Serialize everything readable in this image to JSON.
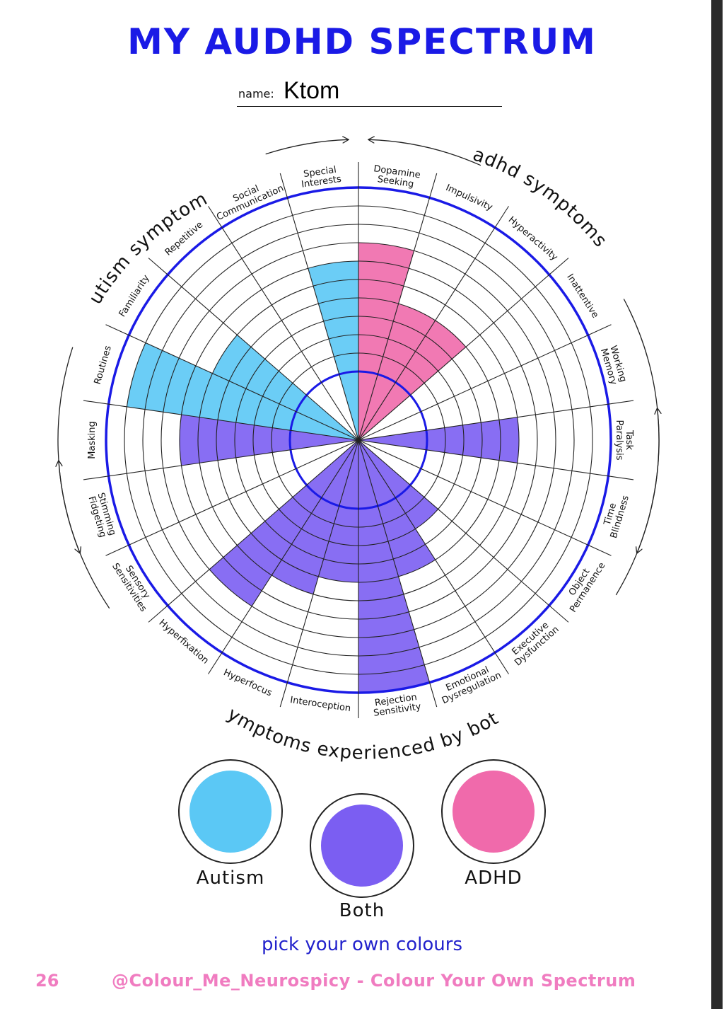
{
  "title": "MY AUDHD SPECTRUM",
  "name_label": "name:",
  "name_value": "Ktom",
  "group_labels": {
    "autism": "autism symptoms",
    "adhd": "adhd symptoms",
    "both": "symptoms experienced by both"
  },
  "colors": {
    "autism": "#5bc8f5",
    "adhd": "#f06aab",
    "both": "#7b5ef2",
    "ring": "#1a1ae6"
  },
  "chart_data": {
    "type": "polar-bar",
    "scale_max": 10,
    "sectors": [
      {
        "label": "Dopamine Seeking",
        "group": "adhd",
        "value": 7
      },
      {
        "label": "Impulsivity",
        "group": "adhd",
        "value": 4
      },
      {
        "label": "Hyperactivity",
        "group": "adhd",
        "value": 4
      },
      {
        "label": "Inattentive",
        "group": "adhd",
        "value": 0
      },
      {
        "label": "Working Memory",
        "group": "adhd",
        "value": 0
      },
      {
        "label": "Task Paralysis",
        "group": "both",
        "value": 5
      },
      {
        "label": "Time Blindness",
        "group": "both",
        "value": 0
      },
      {
        "label": "Object Permanence",
        "group": "both",
        "value": 0
      },
      {
        "label": "Executive Dysfunction",
        "group": "both",
        "value": 2
      },
      {
        "label": "Emotional Dysregulation",
        "group": "both",
        "value": 4
      },
      {
        "label": "Rejection Sensitivity",
        "group": "both",
        "value": 10
      },
      {
        "label": "Interoception",
        "group": "both",
        "value": 4
      },
      {
        "label": "Hyperfocus",
        "group": "both",
        "value": 5
      },
      {
        "label": "Hyperfixation",
        "group": "both",
        "value": 7
      },
      {
        "label": "Sensory Sensitivities",
        "group": "both",
        "value": 0
      },
      {
        "label": "Stimming Fidgeting",
        "group": "both",
        "value": 0
      },
      {
        "label": "Masking",
        "group": "both",
        "value": 6
      },
      {
        "label": "Routines",
        "group": "autism",
        "value": 9
      },
      {
        "label": "Familiarity",
        "group": "autism",
        "value": 5
      },
      {
        "label": "Repetitive",
        "group": "autism",
        "value": 0
      },
      {
        "label": "Social Communication",
        "group": "autism",
        "value": 0
      },
      {
        "label": "Special Interests",
        "group": "autism",
        "value": 6
      }
    ]
  },
  "legend": [
    {
      "label": "Autism",
      "color": "#5bc8f5"
    },
    {
      "label": "Both",
      "color": "#7b5ef2"
    },
    {
      "label": "ADHD",
      "color": "#f06aab"
    }
  ],
  "hint": "pick your own colours",
  "footer": {
    "page_number": "26",
    "credit": "@Colour_Me_Neurospicy - Colour Your Own Spectrum"
  }
}
